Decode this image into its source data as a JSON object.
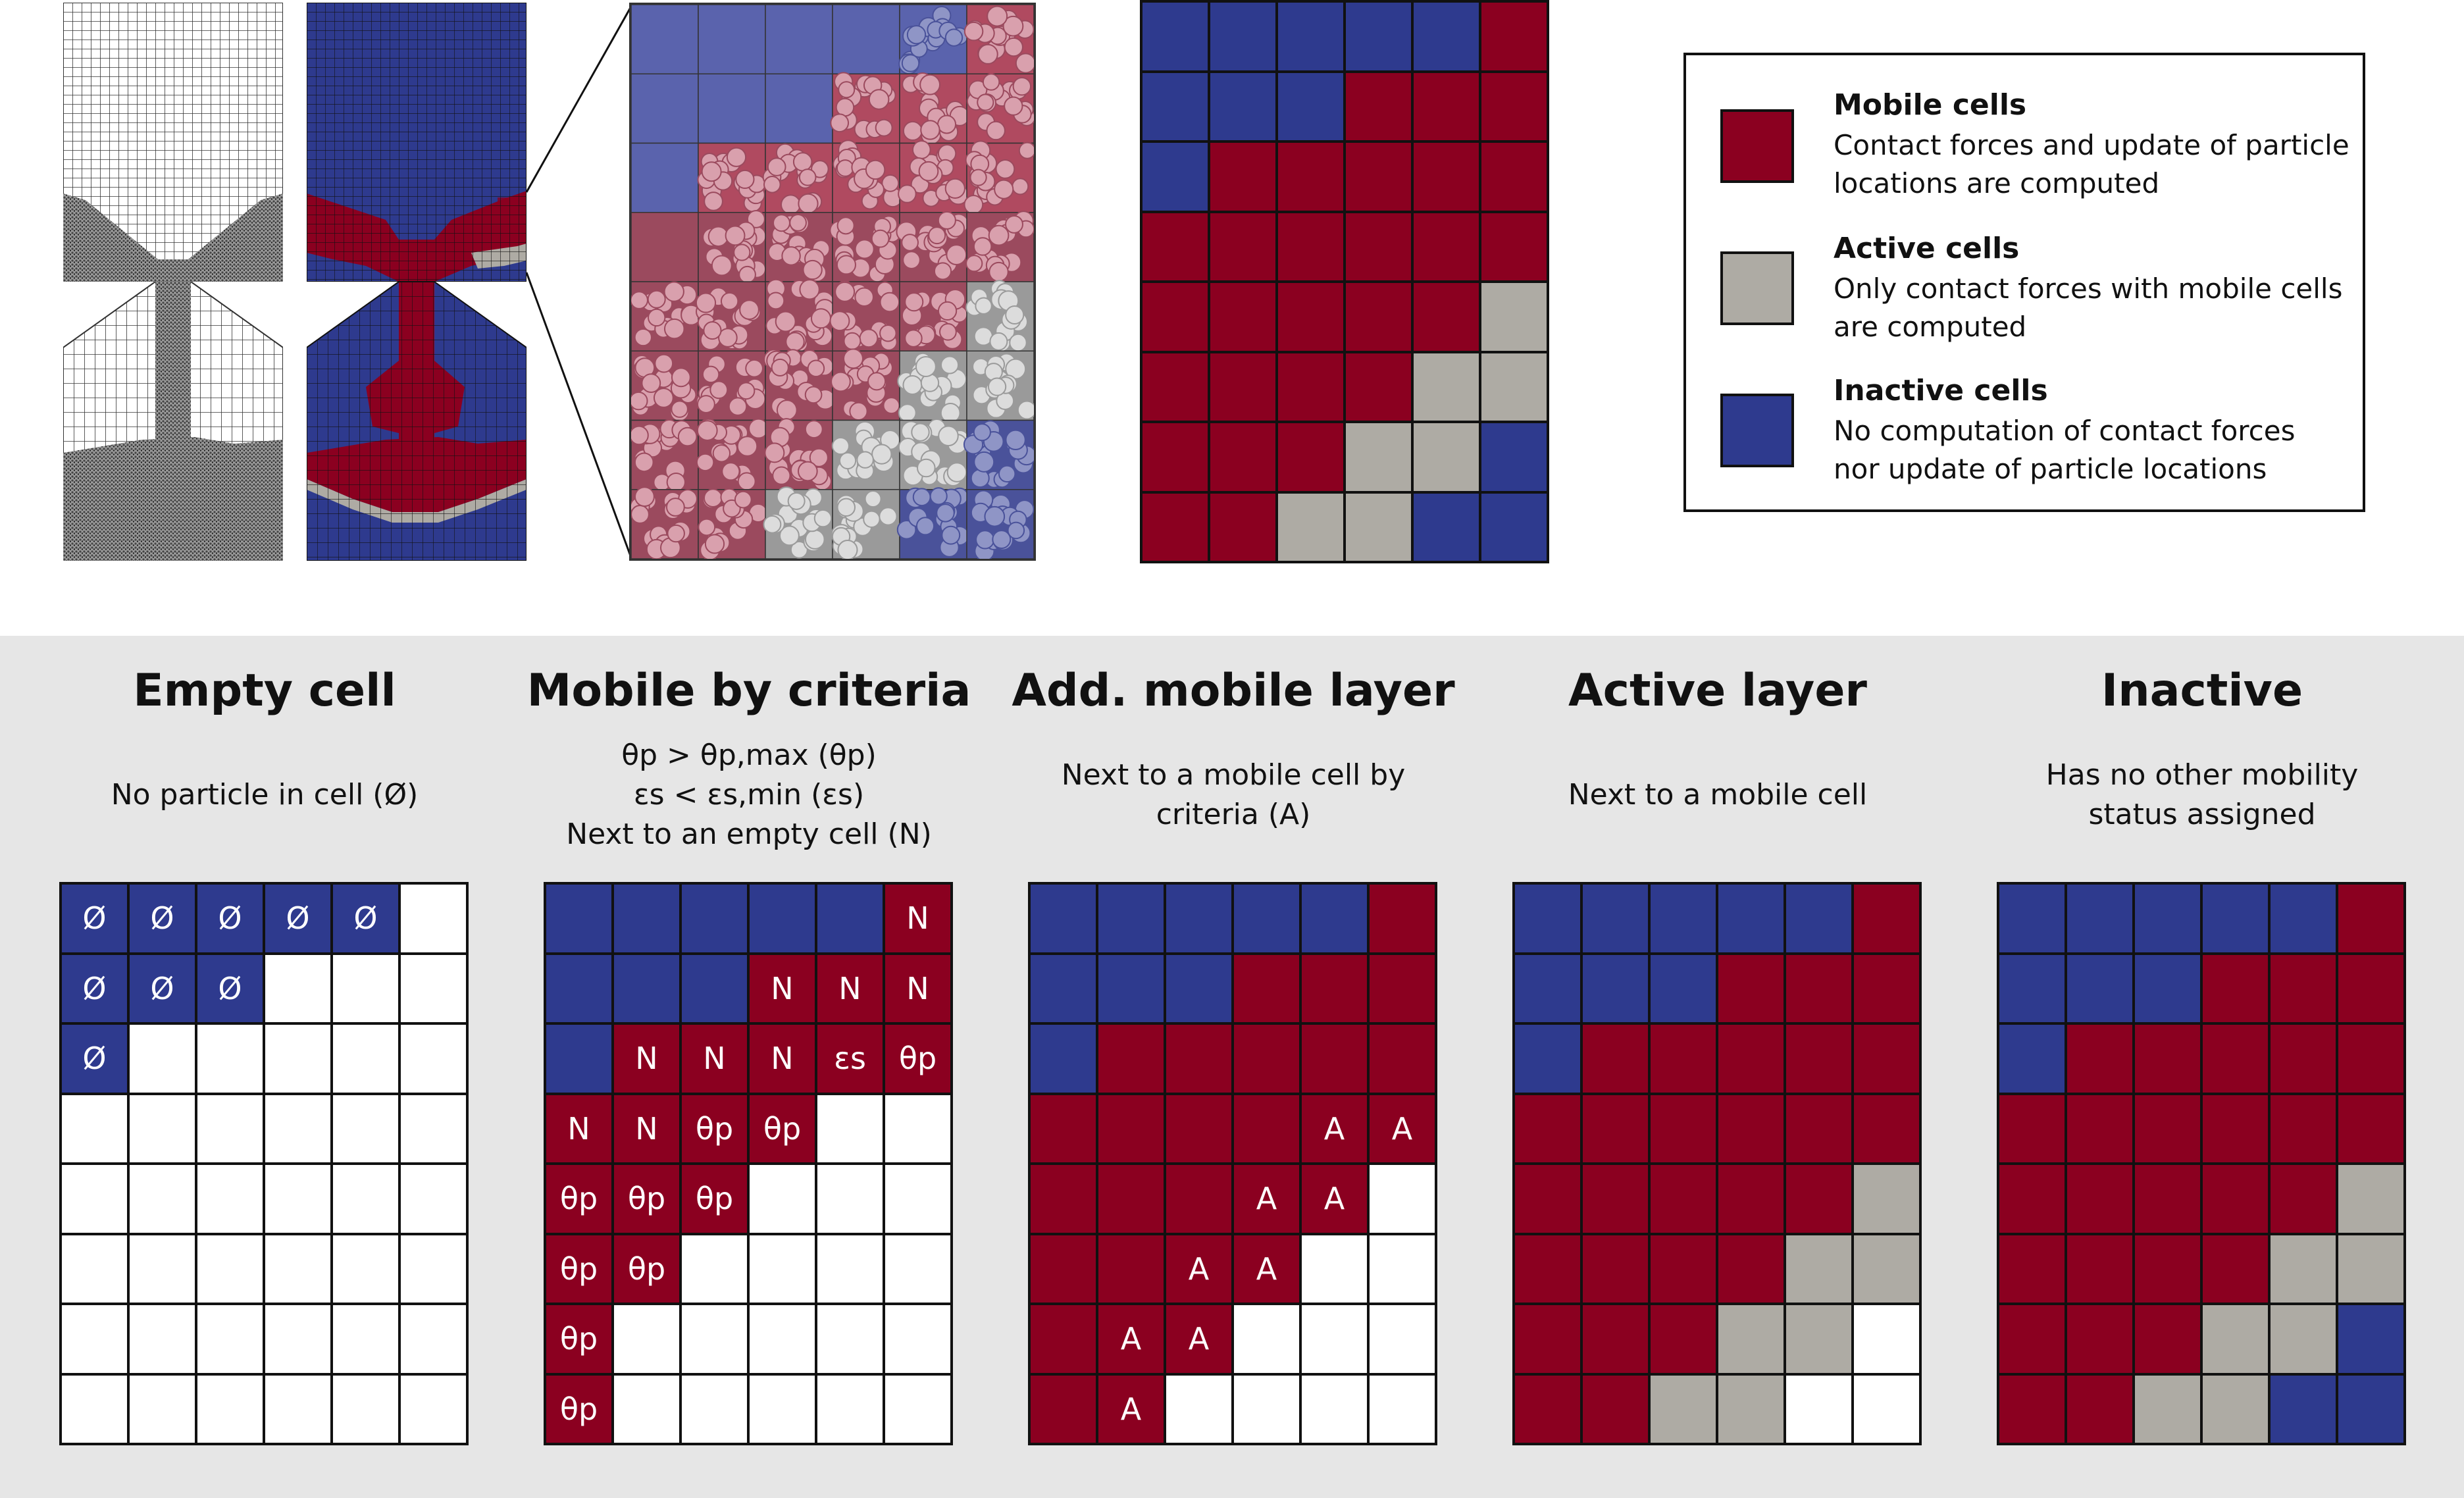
{
  "colors": {
    "mobile": "#8b0020",
    "active": "#aeaba4",
    "inactive": "#2e3a8e",
    "empty": "#ffffff",
    "panel_bg": "#e6e6e6"
  },
  "legend": {
    "items": [
      {
        "key": "mobile",
        "title": "Mobile cells",
        "desc_lines": [
          "Contact forces and update of particle",
          "locations are computed"
        ]
      },
      {
        "key": "active",
        "title": "Active cells",
        "desc_lines": [
          "Only contact forces with mobile cells",
          "are computed"
        ]
      },
      {
        "key": "inactive",
        "title": "Inactive cells",
        "desc_lines": [
          "No computation of contact forces",
          "nor update of particle locations"
        ]
      }
    ]
  },
  "top_grid": {
    "rows": [
      "IIIIIM",
      "IIIMMM",
      "IMMMMM",
      "MMMMMM",
      "MMMMMA",
      "MMMMAA",
      "MMMAAI",
      "MMAAII"
    ]
  },
  "panels": [
    {
      "title": "Empty cell",
      "desc_lines": [
        "No particle in cell (Ø)"
      ],
      "rows": [
        "IIIIIE",
        "IIIEEE",
        "IEEEEE",
        "EEEEEE",
        "EEEEEE",
        "EEEEEE",
        "EEEEEE",
        "EEEEEE"
      ],
      "labels": [
        [
          "Ø",
          "Ø",
          "Ø",
          "Ø",
          "Ø",
          ""
        ],
        [
          "Ø",
          "Ø",
          "Ø",
          "",
          "",
          ""
        ],
        [
          "Ø",
          "",
          "",
          "",
          "",
          ""
        ],
        [
          "",
          "",
          "",
          "",
          "",
          ""
        ],
        [
          "",
          "",
          "",
          "",
          "",
          ""
        ],
        [
          "",
          "",
          "",
          "",
          "",
          ""
        ],
        [
          "",
          "",
          "",
          "",
          "",
          ""
        ],
        [
          "",
          "",
          "",
          "",
          "",
          ""
        ]
      ]
    },
    {
      "title": "Mobile by criteria",
      "desc_lines": [
        "θp > θp,max (θp)",
        "εs < εs,min (εs)",
        "Next to an empty cell (N)"
      ],
      "rows": [
        "IIIIIM",
        "IIIMMM",
        "IMMMMM",
        "MMMMEE",
        "MMMEEE",
        "MMEEEE",
        "MEEEEE",
        "MEEEEE"
      ],
      "labels": [
        [
          "",
          "",
          "",
          "",
          "",
          "N"
        ],
        [
          "",
          "",
          "",
          "N",
          "N",
          "N"
        ],
        [
          "",
          "N",
          "N",
          "N",
          "εs",
          "θp"
        ],
        [
          "N",
          "N",
          "θp",
          "θp",
          "",
          ""
        ],
        [
          "θp",
          "θp",
          "θp",
          "",
          "",
          ""
        ],
        [
          "θp",
          "θp",
          "",
          "",
          "",
          ""
        ],
        [
          "θp",
          "",
          "",
          "",
          "",
          ""
        ],
        [
          "θp",
          "",
          "",
          "",
          "",
          ""
        ]
      ]
    },
    {
      "title": "Add. mobile layer",
      "desc_lines": [
        "Next to a mobile cell by",
        "criteria (A)"
      ],
      "rows": [
        "IIIIIM",
        "IIIMMM",
        "IMMMMM",
        "MMMMMM",
        "MMMMME",
        "MMMMEE",
        "MMMEEE",
        "MMEEEE"
      ],
      "labels": [
        [
          "",
          "",
          "",
          "",
          "",
          ""
        ],
        [
          "",
          "",
          "",
          "",
          "",
          ""
        ],
        [
          "",
          "",
          "",
          "",
          "",
          ""
        ],
        [
          "",
          "",
          "",
          "",
          "A",
          "A"
        ],
        [
          "",
          "",
          "",
          "A",
          "A",
          ""
        ],
        [
          "",
          "",
          "A",
          "A",
          "",
          ""
        ],
        [
          "",
          "A",
          "A",
          "",
          "",
          ""
        ],
        [
          "",
          "A",
          "",
          "",
          "",
          ""
        ]
      ]
    },
    {
      "title": "Active layer",
      "desc_lines": [
        "Next to a mobile cell"
      ],
      "rows": [
        "IIIIIM",
        "IIIMMM",
        "IMMMMM",
        "MMMMMM",
        "MMMMMA",
        "MMMMAA",
        "MMMAAE",
        "MMAAEE"
      ],
      "labels": []
    },
    {
      "title": "Inactive",
      "desc_lines": [
        "Has no other mobility",
        "status assigned"
      ],
      "rows": [
        "IIIIIM",
        "IIIMMM",
        "IMMMMM",
        "MMMMMM",
        "MMMMMA",
        "MMMMAA",
        "MMMAAI",
        "MMAAII"
      ],
      "labels": []
    }
  ],
  "zoom_grid": {
    "rows": [
      "IIIIIM",
      "IIIMMM",
      "IMMMMM",
      "MMMMMM",
      "MMMMMA",
      "MMMMAA",
      "MMMAAI",
      "MMAAII"
    ]
  }
}
